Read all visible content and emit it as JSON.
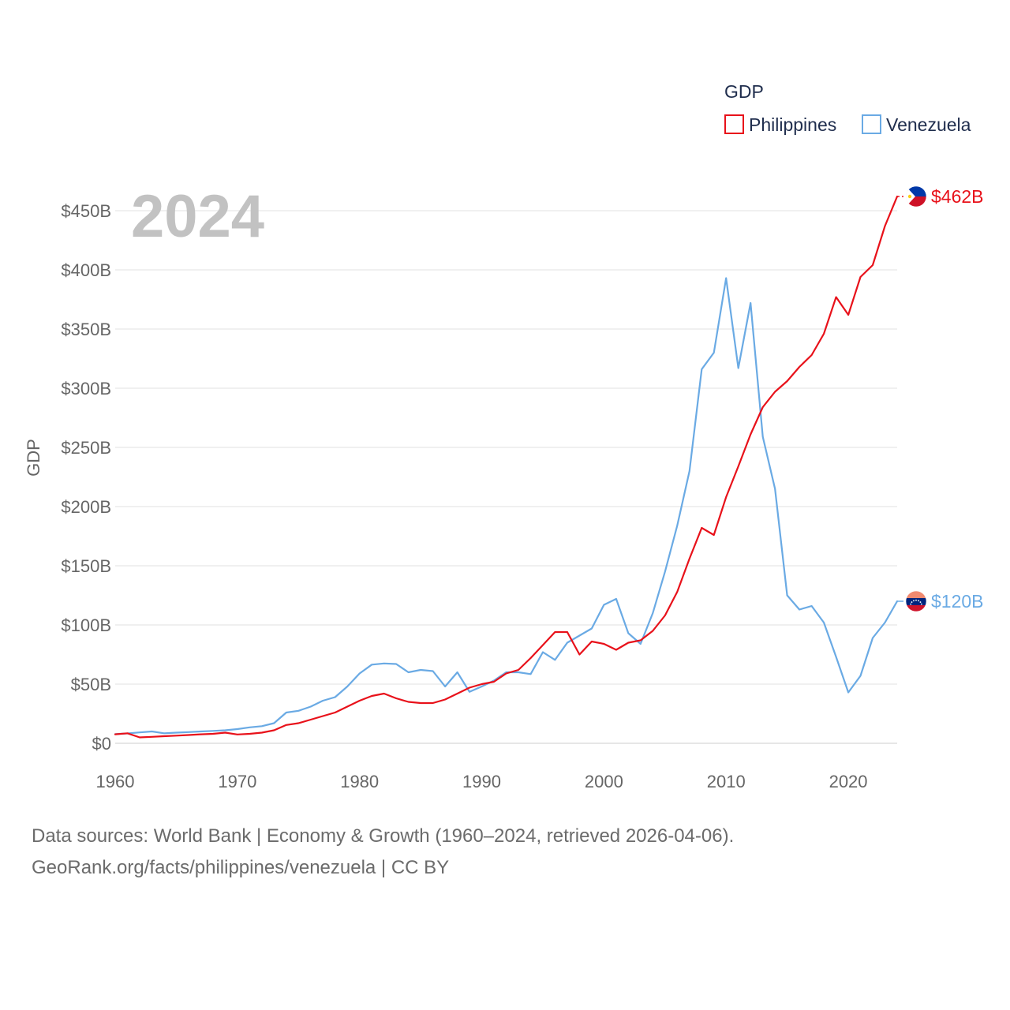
{
  "chart_data": {
    "type": "line",
    "title": "",
    "watermark_year": "2024",
    "xlabel": "",
    "ylabel": "GDP",
    "xlim": [
      1960,
      2024
    ],
    "ylim": [
      0,
      450
    ],
    "x_ticks": [
      1960,
      1970,
      1980,
      1990,
      2000,
      2010,
      2020
    ],
    "y_ticks": [
      0,
      50,
      100,
      150,
      200,
      250,
      300,
      350,
      400,
      450
    ],
    "y_tick_labels": [
      "$0",
      "$50B",
      "$100B",
      "$150B",
      "$200B",
      "$250B",
      "$300B",
      "$350B",
      "$400B",
      "$450B"
    ],
    "legend": {
      "title": "GDP",
      "position": "top-right"
    },
    "x": [
      1960,
      1961,
      1962,
      1963,
      1964,
      1965,
      1966,
      1967,
      1968,
      1969,
      1970,
      1971,
      1972,
      1973,
      1974,
      1975,
      1976,
      1977,
      1978,
      1979,
      1980,
      1981,
      1982,
      1983,
      1984,
      1985,
      1986,
      1987,
      1988,
      1989,
      1990,
      1991,
      1992,
      1993,
      1994,
      1995,
      1996,
      1997,
      1998,
      1999,
      2000,
      2001,
      2002,
      2003,
      2004,
      2005,
      2006,
      2007,
      2008,
      2009,
      2010,
      2011,
      2012,
      2013,
      2014,
      2015,
      2016,
      2017,
      2018,
      2019,
      2020,
      2021,
      2022,
      2023,
      2024
    ],
    "series": [
      {
        "name": "Philippines",
        "color": "#e8111a",
        "end_label": "$462B",
        "values": [
          7.6,
          8.5,
          5,
          5.5,
          6,
          6.5,
          7,
          7.6,
          8,
          9,
          7.5,
          8,
          9,
          11,
          15.5,
          17,
          20,
          23,
          26,
          31,
          36,
          40,
          42,
          38,
          35,
          34,
          34,
          37,
          42,
          47,
          50,
          52,
          59,
          62,
          72,
          83,
          94,
          94,
          75,
          86,
          84,
          79,
          85,
          87,
          95,
          108,
          128,
          156,
          182,
          176,
          208,
          234,
          261,
          284,
          297,
          306,
          318,
          328,
          346,
          377,
          362,
          394,
          404,
          437,
          462
        ]
      },
      {
        "name": "Venezuela",
        "color": "#6aaae4",
        "end_label": "$120B",
        "values": [
          7.8,
          8.3,
          9.2,
          10,
          8.5,
          9,
          9.5,
          10,
          10.5,
          11,
          12,
          13.5,
          14.5,
          17,
          26,
          27.5,
          31,
          36,
          39,
          48,
          59,
          66.5,
          67.5,
          67,
          60,
          62,
          61,
          48,
          60,
          43.5,
          48,
          53,
          60,
          60,
          58.5,
          77,
          70.5,
          85,
          91,
          97,
          117,
          122,
          93,
          84,
          110,
          145,
          184,
          230,
          316,
          330,
          393,
          317,
          372,
          259,
          215,
          125,
          113,
          116,
          102,
          73,
          43,
          57,
          89,
          102,
          120
        ]
      }
    ]
  },
  "source": {
    "line1": "Data sources: World Bank | Economy & Growth (1960–2024, retrieved 2026-04-06).",
    "line2": "GeoRank.org/facts/philippines/venezuela | CC BY"
  }
}
